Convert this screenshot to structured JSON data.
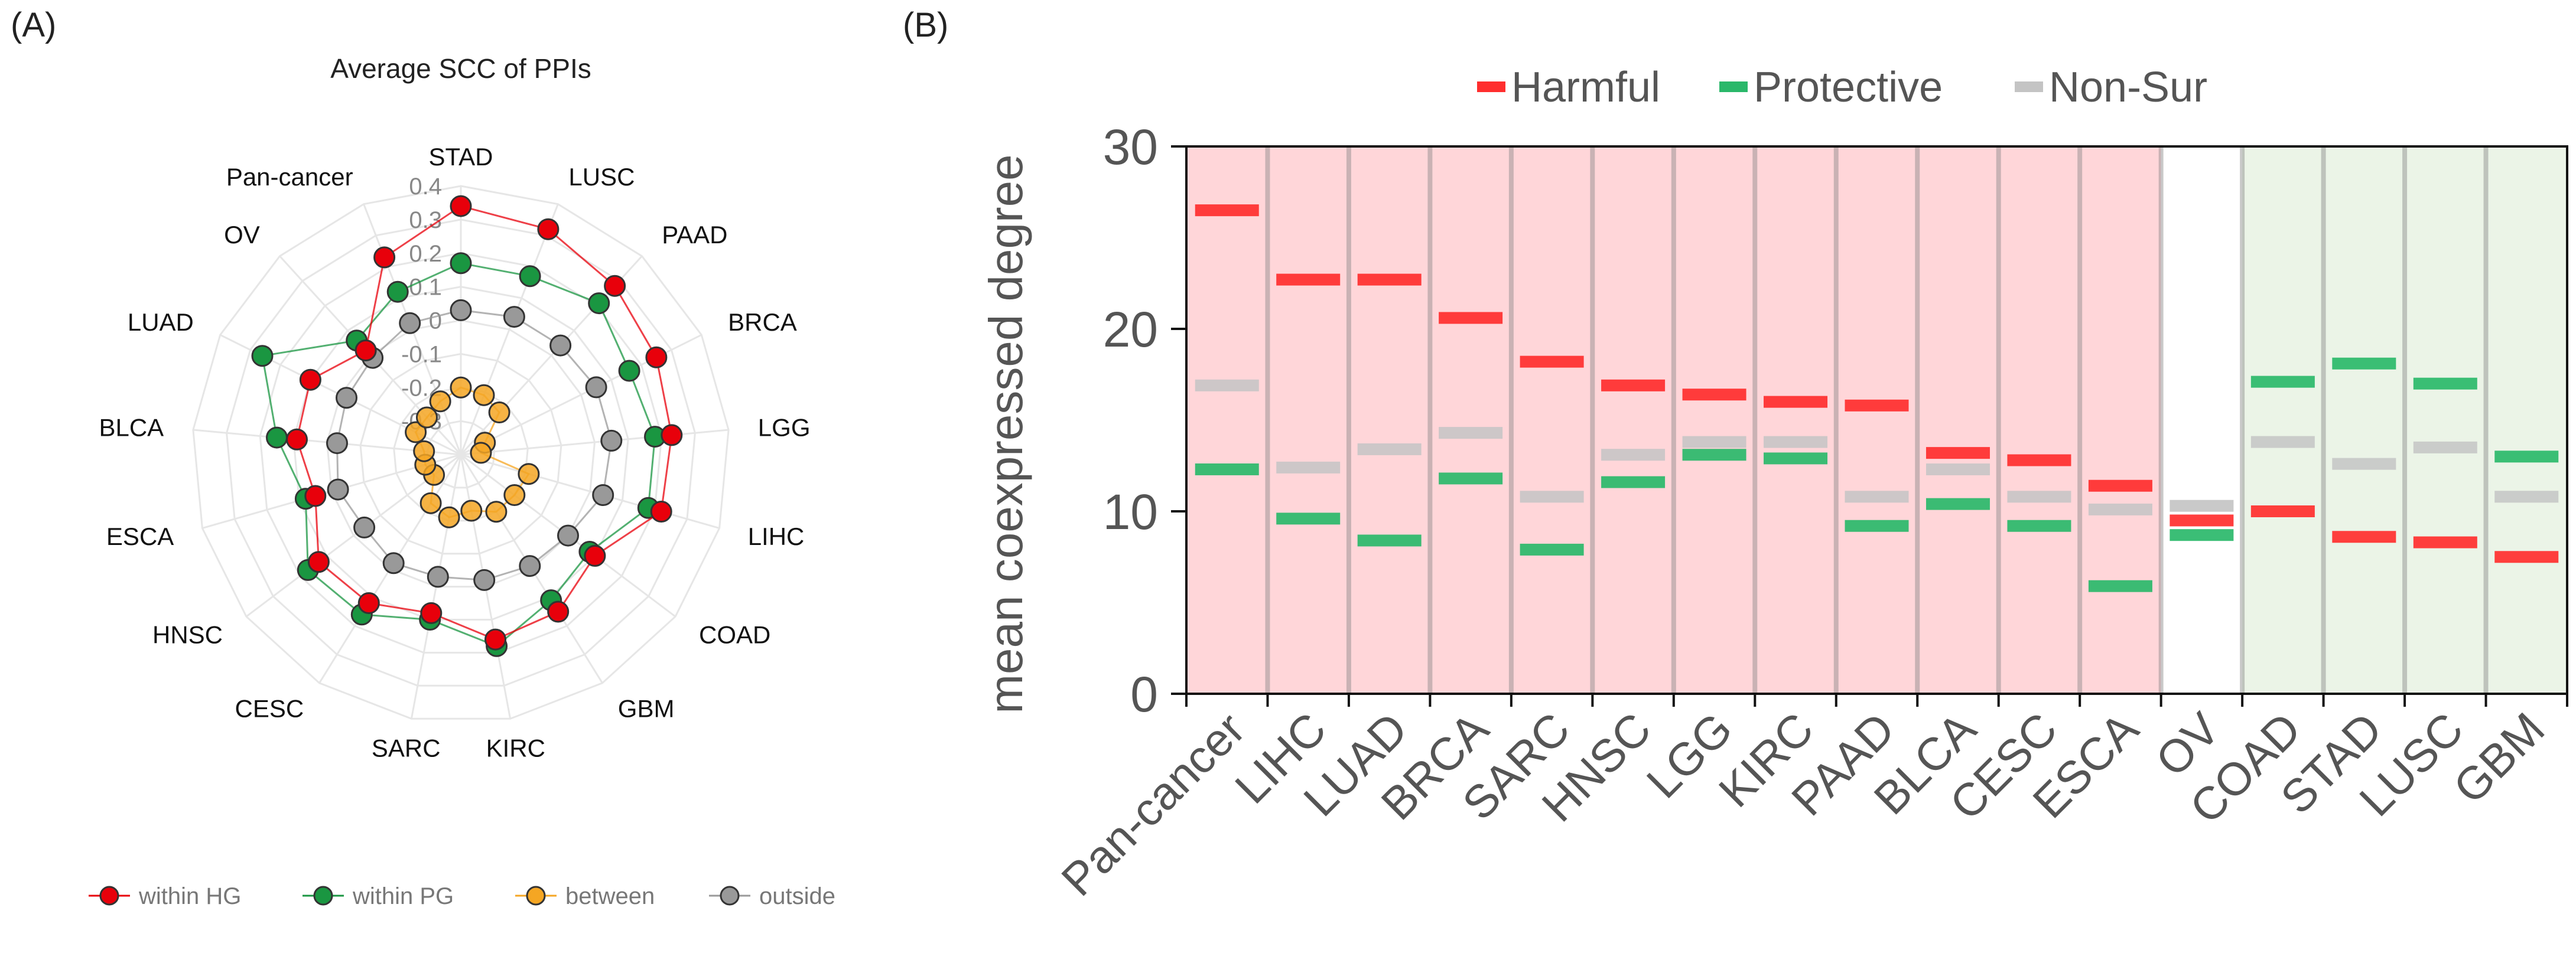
{
  "chart_data": [
    {
      "panel_label": "(A)",
      "type": "radar",
      "title": "Average SCC of PPIs",
      "categories": [
        "STAD",
        "LUSC",
        "PAAD",
        "BRCA",
        "LGG",
        "LIHC",
        "COAD",
        "GBM",
        "KIRC",
        "SARC",
        "CESC",
        "HNSC",
        "ESCA",
        "BLCA",
        "LUAD",
        "OV",
        "Pan-cancer"
      ],
      "radial_ticks": [
        "0.4",
        "0.3",
        "0.2",
        "0.1",
        "0",
        "-0.1",
        "-0.2",
        "-0.3"
      ],
      "rlim": [
        -0.4,
        0.4
      ],
      "series": [
        {
          "name": "within HG",
          "color": "#e8000b",
          "values": [
            0.34,
            0.32,
            0.28,
            0.25,
            0.23,
            0.22,
            0.1,
            0.15,
            0.16,
            0.08,
            0.12,
            0.13,
            0.05,
            0.09,
            0.1,
            0.02,
            0.23
          ]
        },
        {
          "name": "within PG",
          "color": "#1a9641",
          "values": [
            0.17,
            0.17,
            0.21,
            0.16,
            0.18,
            0.18,
            0.08,
            0.11,
            0.18,
            0.1,
            0.16,
            0.17,
            0.08,
            0.15,
            0.26,
            0.06,
            0.12
          ]
        },
        {
          "name": "between",
          "color": "#f5a623",
          "values": [
            -0.2,
            -0.21,
            -0.23,
            -0.32,
            -0.34,
            -0.19,
            -0.2,
            -0.2,
            -0.23,
            -0.21,
            -0.23,
            -0.3,
            -0.29,
            -0.29,
            -0.25,
            -0.25,
            -0.23
          ]
        },
        {
          "name": "outside",
          "color": "#999999",
          "values": [
            0.03,
            0.04,
            0.04,
            0.05,
            0.05,
            0.04,
            0.0,
            -0.01,
            -0.02,
            -0.03,
            -0.02,
            -0.04,
            -0.02,
            -0.03,
            -0.02,
            -0.01,
            0.02
          ]
        }
      ]
    },
    {
      "panel_label": "(B)",
      "type": "dot-dash",
      "categories": [
        "Pan-cancer",
        "LIHC",
        "LUAD",
        "BRCA",
        "SARC",
        "HNSC",
        "LGG",
        "KIRC",
        "PAAD",
        "BLCA",
        "CESC",
        "ESCA",
        "OV",
        "COAD",
        "STAD",
        "LUSC",
        "GBM"
      ],
      "group": [
        "harmful",
        "harmful",
        "harmful",
        "harmful",
        "harmful",
        "harmful",
        "harmful",
        "harmful",
        "harmful",
        "harmful",
        "harmful",
        "harmful",
        "neutral",
        "protective",
        "protective",
        "protective",
        "protective"
      ],
      "ylabel": "mean coexpressed degree",
      "ylim": [
        0,
        30
      ],
      "yticks": [
        "0",
        "10",
        "20",
        "30"
      ],
      "legend": [
        "Harmful",
        "Protective",
        "Non-Sur"
      ],
      "colors": {
        "harmful": "#ff2e2e",
        "protective": "#2ab86a",
        "nonsur": "#c4c4c4",
        "harmful_bg": "#ffd6d9",
        "protective_bg": "#ebf4e7"
      },
      "series": [
        {
          "name": "Harmful",
          "values": [
            26.5,
            22.7,
            22.7,
            20.6,
            18.2,
            16.9,
            16.4,
            16.0,
            15.8,
            13.2,
            12.8,
            11.4,
            9.5,
            10.0,
            8.6,
            8.3,
            7.5
          ]
        },
        {
          "name": "Protective",
          "values": [
            12.3,
            9.6,
            8.4,
            11.8,
            7.9,
            11.6,
            13.1,
            12.9,
            9.2,
            10.4,
            9.2,
            5.9,
            8.7,
            17.1,
            18.1,
            17.0,
            13.0
          ]
        },
        {
          "name": "Non-Sur",
          "values": [
            16.9,
            12.4,
            13.4,
            14.3,
            10.8,
            13.1,
            13.8,
            13.8,
            10.8,
            12.3,
            10.8,
            10.1,
            10.3,
            13.8,
            12.6,
            13.5,
            10.8
          ]
        }
      ]
    }
  ]
}
